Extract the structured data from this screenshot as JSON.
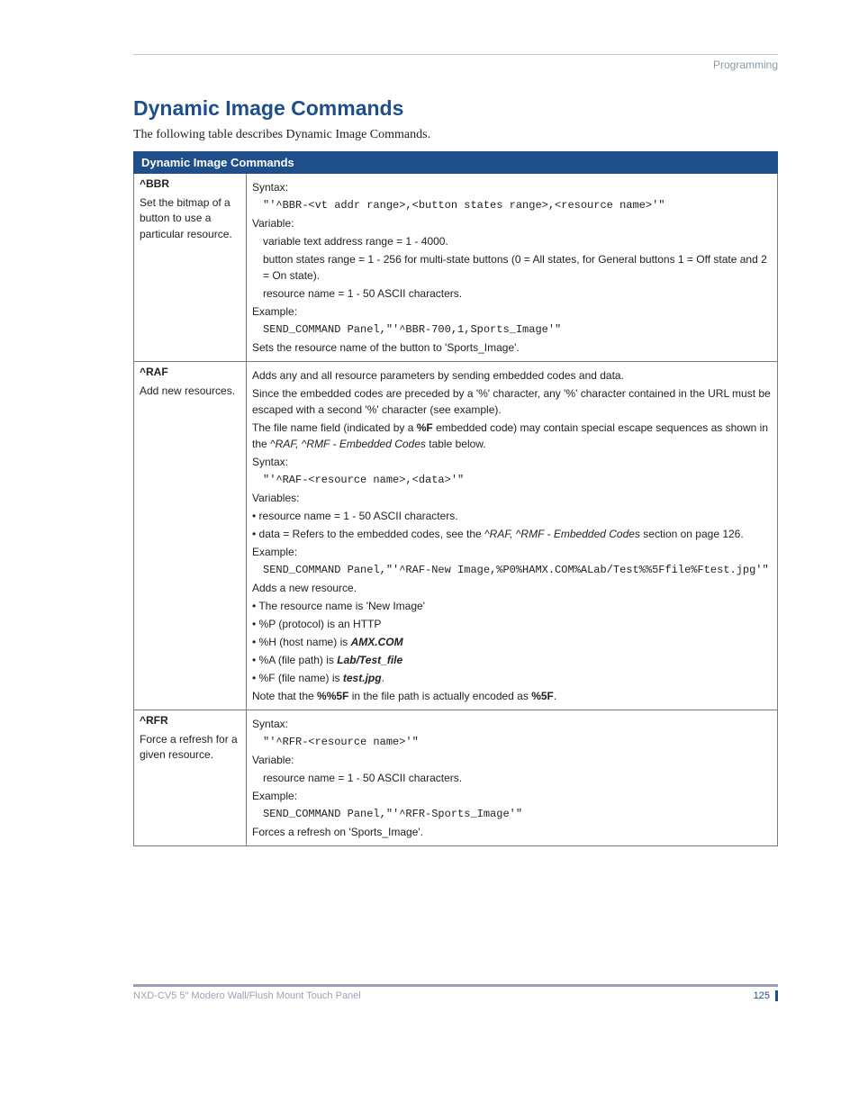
{
  "header": {
    "label": "Programming"
  },
  "title": "Dynamic Image Commands",
  "intro": "The following table describes  Dynamic Image Commands.",
  "table": {
    "caption": "Dynamic Image Commands",
    "rows": [
      {
        "cmd": "^BBR",
        "desc": "Set the bitmap of a button to use a particular resource.",
        "body": {
          "syntax_label": "Syntax:",
          "syntax_code": "\"'^BBR-<vt addr range>,<button states range>,<resource name>'\"",
          "variable_label": "Variable:",
          "variables": [
            "variable text address range = 1 - 4000.",
            "button states range = 1 - 256 for multi-state buttons (0 = All states, for General buttons 1 = Off state and 2 = On state).",
            "resource name = 1 - 50 ASCII characters."
          ],
          "example_label": "Example:",
          "example_code": "SEND_COMMAND Panel,\"'^BBR-700,1,Sports_Image'\"",
          "example_after": "Sets the resource name of the button to 'Sports_Image'."
        }
      },
      {
        "cmd": "^RAF",
        "desc": "Add new resources.",
        "body": {
          "pre1": "Adds any and all resource parameters by sending embedded codes and data.",
          "pre2": "Since the embedded codes are preceded by a '%' character, any '%' character contained in the URL must be escaped with a second '%' character (see example).",
          "pre3a": "The file name field (indicated by a ",
          "pre3b": "%F",
          "pre3c": " embedded code) may contain special escape sequences as shown in the ",
          "pre3d": "^RAF, ^RMF - Embedded Codes",
          "pre3e": " table below.",
          "syntax_label": "Syntax:",
          "syntax_code": "\"'^RAF-<resource name>,<data>'\"",
          "variables_label": "Variables:",
          "var1": "• resource name = 1 - 50 ASCII characters.",
          "var2a": "• data = Refers to the embedded codes, see the ",
          "var2b": "^RAF, ^RMF - Embedded Codes",
          "var2c": " section on page 126.",
          "example_label": "Example:",
          "example_code": "SEND_COMMAND Panel,\"'^RAF-New Image,%P0%HAMX.COM%ALab/Test%%5Ffile%Ftest.jpg'\"",
          "after1": "Adds a new resource.",
          "after2": "• The resource name is 'New Image'",
          "after3": "• %P (protocol) is an HTTP",
          "after4a": "• %H (host name) is ",
          "after4b": "AMX.COM",
          "after5a": "• %A (file path) is ",
          "after5b": "Lab/Test_file",
          "after6a": "• %F (file name) is ",
          "after6b": "test.jpg",
          "after6c": ".",
          "note_a": "Note that the ",
          "note_b": "%%5F",
          "note_c": " in the file path is actually encoded as ",
          "note_d": "%5F",
          "note_e": "."
        }
      },
      {
        "cmd": "^RFR",
        "desc": "Force a refresh for a given resource.",
        "body": {
          "syntax_label": "Syntax:",
          "syntax_code": "\"'^RFR-<resource name>'\"",
          "variable_label": "Variable:",
          "variables": [
            "resource name = 1 - 50 ASCII characters."
          ],
          "example_label": "Example:",
          "example_code": "SEND_COMMAND Panel,\"'^RFR-Sports_Image'\"",
          "example_after": "Forces a refresh on 'Sports_Image'."
        }
      }
    ]
  },
  "footer": {
    "left": "NXD-CV5 5\" Modero Wall/Flush Mount Touch Panel",
    "page": "125"
  }
}
